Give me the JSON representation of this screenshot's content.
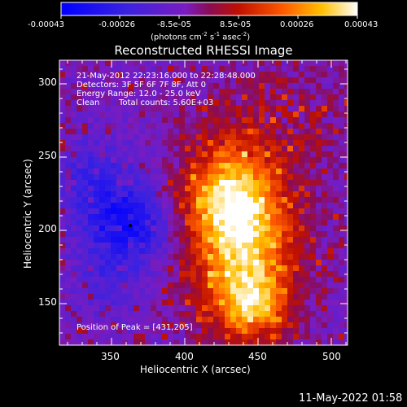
{
  "colorbar": {
    "tick_labels": [
      "-0.00043",
      "-0.00026",
      "-8.5e-05",
      "8.5e-05",
      "0.00026",
      "0.00043"
    ],
    "unit_html": "(photons cm<sup>-2</sup> s<sup>-1</sup> asec<sup>-2</sup>)",
    "unit": "(photons cm-2 s-1 asec-2)"
  },
  "title": "Reconstructed RHESSI Image",
  "info": {
    "line1": "21-May-2012 22:23:16.000 to 22:28:48.000",
    "line2": "Detectors: 3F 5F 6F 7F 8F, Att 0",
    "line3": "Energy Range: 12.0 - 25.0 keV",
    "line4_method": "Clean",
    "line4_counts": "Total counts: 5.60E+03"
  },
  "peak": "Position of Peak = [431,205]",
  "x_axis": {
    "label": "Heliocentric X (arcsec)",
    "ticks": [
      "350",
      "400",
      "450",
      "500"
    ]
  },
  "y_axis": {
    "label": "Heliocentric Y (arcsec)",
    "ticks": [
      "150",
      "200",
      "250",
      "300"
    ]
  },
  "footer": "11-May-2022 01:58"
}
